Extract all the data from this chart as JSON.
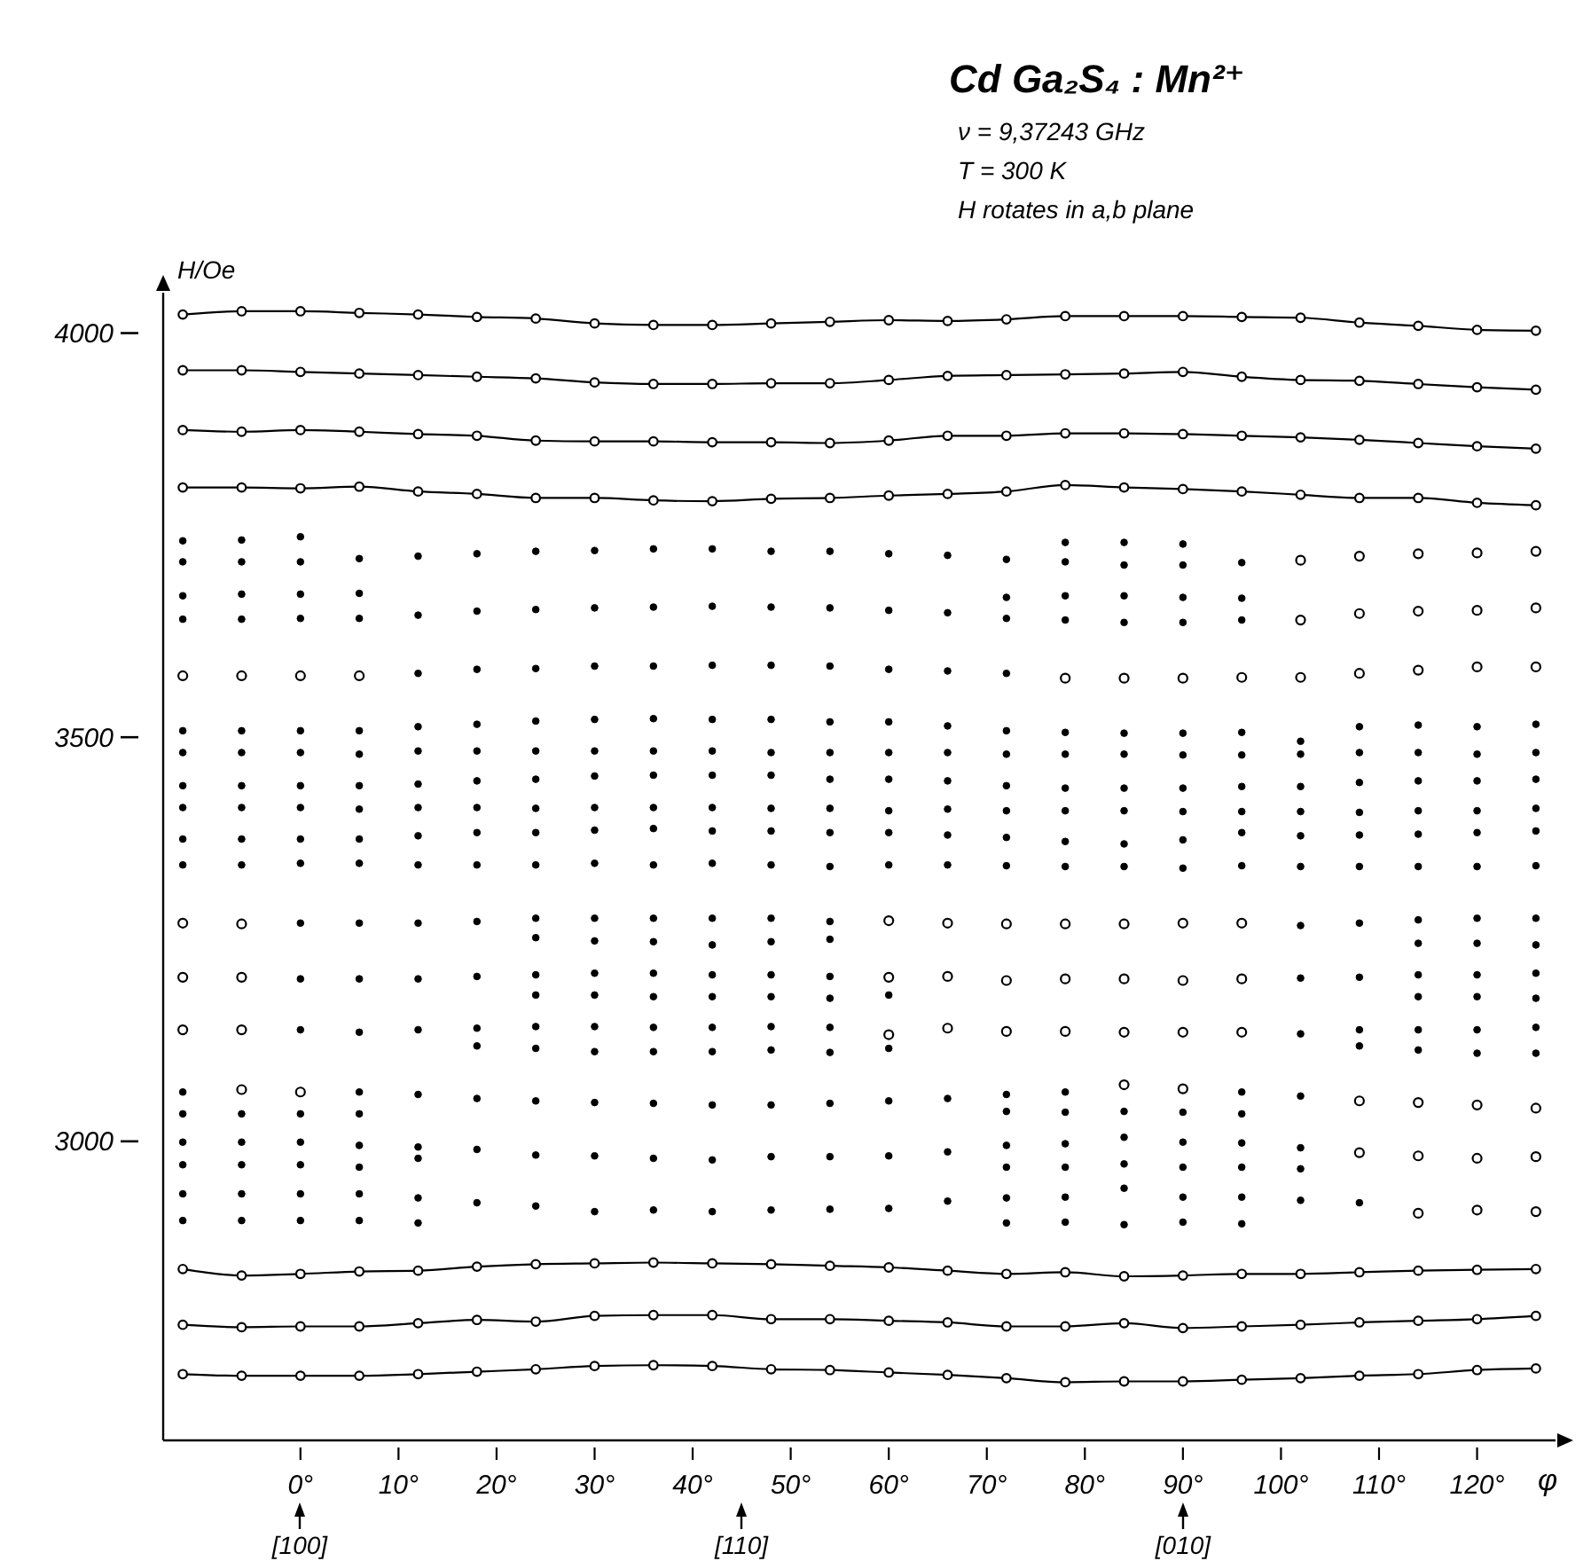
{
  "chart_data": {
    "type": "scatter",
    "title": "Cd Ga₂S₄ : Mn²⁺",
    "subtitle": "ν = 9,37243 GHz",
    "xlabel": "φ",
    "ylabel": "H/Oe",
    "annotations": [
      "T = 300 K",
      "H rotates in a,b plane",
      "[100]",
      "[110]",
      "[010]"
    ],
    "xlim": [
      -14,
      128
    ],
    "ylim": [
      2630,
      4050
    ],
    "xticks": [
      {
        "value": 0,
        "label": "0°"
      },
      {
        "value": 10,
        "label": "10°"
      },
      {
        "value": 20,
        "label": "20°"
      },
      {
        "value": 30,
        "label": "30°"
      },
      {
        "value": 40,
        "label": "40°"
      },
      {
        "value": 50,
        "label": "50°"
      },
      {
        "value": 60,
        "label": "60°"
      },
      {
        "value": 70,
        "label": "70°"
      },
      {
        "value": 80,
        "label": "80°"
      },
      {
        "value": 90,
        "label": "90°"
      },
      {
        "value": 100,
        "label": "100°"
      },
      {
        "value": 110,
        "label": "110°"
      },
      {
        "value": 120,
        "label": "120°"
      }
    ],
    "yticks": [
      3000,
      3500,
      4000
    ],
    "marker": "circle",
    "x": [
      -12,
      -6,
      0,
      6,
      12,
      18,
      24,
      30,
      36,
      42,
      48,
      54,
      60,
      66,
      72,
      78,
      84,
      90,
      96,
      102,
      108,
      114,
      120,
      126
    ],
    "series": [
      {
        "type": "line",
        "color": "#000000",
        "values": [
          4023,
          4027,
          4027,
          4025,
          4023,
          4020,
          4018,
          4012,
          4010,
          4010,
          4012,
          4014,
          4016,
          4015,
          4017,
          4021,
          4021,
          4021,
          4020,
          4019,
          4013,
          4009,
          4004,
          4003
        ]
      },
      {
        "type": "line",
        "color": "#000000",
        "values": [
          3954,
          3954,
          3952,
          3950,
          3948,
          3946,
          3944,
          3939,
          3937,
          3937,
          3938,
          3938,
          3942,
          3947,
          3948,
          3949,
          3950,
          3952,
          3946,
          3942,
          3941,
          3937,
          3933,
          3930
        ]
      },
      {
        "type": "line",
        "color": "#000000",
        "values": [
          3880,
          3878,
          3880,
          3878,
          3875,
          3873,
          3867,
          3866,
          3866,
          3865,
          3865,
          3864,
          3867,
          3873,
          3873,
          3876,
          3876,
          3875,
          3873,
          3871,
          3868,
          3864,
          3860,
          3857
        ]
      },
      {
        "type": "line",
        "color": "#000000",
        "values": [
          3809,
          3809,
          3808,
          3810,
          3804,
          3801,
          3796,
          3796,
          3793,
          3792,
          3795,
          3796,
          3799,
          3801,
          3804,
          3812,
          3809,
          3807,
          3804,
          3800,
          3796,
          3796,
          3790,
          3787
        ]
      },
      {
        "type": "line",
        "color": "#000000",
        "values": [
          2842,
          2834,
          2836,
          2839,
          2840,
          2845,
          2848,
          2849,
          2850,
          2849,
          2848,
          2846,
          2844,
          2840,
          2836,
          2838,
          2833,
          2834,
          2836,
          2836,
          2838,
          2840,
          2841,
          2842
        ]
      },
      {
        "type": "line",
        "color": "#000000",
        "values": [
          2773,
          2770,
          2771,
          2771,
          2775,
          2779,
          2777,
          2784,
          2785,
          2785,
          2780,
          2780,
          2778,
          2776,
          2771,
          2771,
          2775,
          2769,
          2771,
          2773,
          2776,
          2778,
          2780,
          2784
        ]
      },
      {
        "type": "line",
        "color": "#000000",
        "values": [
          2712,
          2710,
          2710,
          2710,
          2712,
          2715,
          2718,
          2722,
          2723,
          2722,
          2718,
          2717,
          2714,
          2711,
          2707,
          2702,
          2703,
          2703,
          2705,
          2707,
          2710,
          2712,
          2717,
          2719
        ]
      },
      {
        "type": "scatter",
        "color": "#000000",
        "x": [
          -12,
          -12,
          -12,
          -12,
          -12,
          -12,
          -12,
          -12,
          -12,
          -12,
          -12,
          -12,
          -12,
          -12,
          -12,
          -12,
          -6,
          -6,
          -6,
          -6,
          -6,
          -6,
          -6,
          -6,
          -6,
          -6,
          -6,
          -6,
          -6,
          -6,
          -6,
          0,
          0,
          0,
          0,
          0,
          0,
          0,
          0,
          0,
          0,
          0,
          0,
          0,
          0,
          0,
          0,
          0,
          0,
          6,
          6,
          6,
          6,
          6,
          6,
          6,
          6,
          6,
          6,
          6,
          6,
          6,
          6,
          6,
          6,
          6,
          6,
          12,
          12,
          12,
          12,
          12,
          12,
          12,
          12,
          12,
          12,
          12,
          12,
          12,
          12,
          12,
          12,
          12,
          18,
          18,
          18,
          18,
          18,
          18,
          18,
          18,
          18,
          18,
          18,
          18,
          18,
          18,
          18,
          18,
          24,
          24,
          24,
          24,
          24,
          24,
          24,
          24,
          24,
          24,
          24,
          24,
          24,
          24,
          24,
          24,
          24,
          24,
          30,
          30,
          30,
          30,
          30,
          30,
          30,
          30,
          30,
          30,
          30,
          30,
          30,
          30,
          30,
          30,
          30,
          30,
          36,
          36,
          36,
          36,
          36,
          36,
          36,
          36,
          36,
          36,
          36,
          36,
          36,
          36,
          36,
          36,
          36,
          36,
          42,
          42,
          42,
          42,
          42,
          42,
          42,
          42,
          42,
          42,
          42,
          42,
          42,
          42,
          42,
          42,
          42,
          42,
          48,
          48,
          48,
          48,
          48,
          48,
          48,
          48,
          48,
          48,
          48,
          48,
          48,
          48,
          48,
          48,
          48,
          48,
          54,
          54,
          54,
          54,
          54,
          54,
          54,
          54,
          54,
          54,
          54,
          54,
          54,
          54,
          54,
          54,
          54,
          54,
          60,
          60,
          60,
          60,
          60,
          60,
          60,
          60,
          60,
          60,
          60,
          60,
          60,
          60,
          66,
          66,
          66,
          66,
          66,
          66,
          66,
          66,
          66,
          66,
          66,
          66,
          72,
          72,
          72,
          72,
          72,
          72,
          72,
          72,
          72,
          72,
          72,
          72,
          72,
          72,
          72,
          72,
          78,
          78,
          78,
          78,
          78,
          78,
          78,
          78,
          78,
          78,
          78,
          78,
          78,
          78,
          78,
          78,
          84,
          84,
          84,
          84,
          84,
          84,
          84,
          84,
          84,
          84,
          84,
          84,
          84,
          84,
          84,
          90,
          90,
          90,
          90,
          90,
          90,
          90,
          90,
          90,
          90,
          90,
          90,
          90,
          90,
          90,
          96,
          96,
          96,
          96,
          96,
          96,
          96,
          96,
          96,
          96,
          96,
          96,
          96,
          96,
          96,
          102,
          102,
          102,
          102,
          102,
          102,
          102,
          102,
          102,
          102,
          102,
          102,
          102,
          108,
          108,
          108,
          108,
          108,
          108,
          108,
          108,
          108,
          108,
          108,
          114,
          114,
          114,
          114,
          114,
          114,
          114,
          114,
          114,
          114,
          114,
          114,
          120,
          120,
          120,
          120,
          120,
          120,
          120,
          120,
          120,
          120,
          120,
          120,
          126,
          126,
          126,
          126,
          126,
          126,
          126,
          126,
          126,
          126,
          126,
          126
        ],
        "values": [
          3743,
          3717,
          3675,
          3646,
          3508,
          3481,
          3440,
          3413,
          3374,
          3342,
          3061,
          3034,
          2999,
          2971,
          2935,
          2902,
          3744,
          3717,
          3677,
          3646,
          3508,
          3481,
          3440,
          3413,
          3374,
          3342,
          3034,
          2999,
          2971,
          2935,
          2902,
          3748,
          3717,
          3677,
          3647,
          3508,
          3481,
          3440,
          3413,
          3374,
          3344,
          3270,
          3201,
          3138,
          3034,
          2999,
          2971,
          2935,
          2902,
          3721,
          3678,
          3647,
          3508,
          3479,
          3440,
          3411,
          3374,
          3344,
          3270,
          3201,
          3135,
          3061,
          3034,
          2995,
          2968,
          2935,
          2902,
          3724,
          3651,
          3579,
          3513,
          3483,
          3442,
          3413,
          3378,
          3342,
          3270,
          3201,
          3138,
          3058,
          2993,
          2979,
          2930,
          2899,
          3727,
          3656,
          3584,
          3516,
          3483,
          3446,
          3413,
          3382,
          3342,
          3272,
          3204,
          3140,
          3118,
          3053,
          2990,
          2924,
          3730,
          3658,
          3585,
          3520,
          3483,
          3448,
          3412,
          3382,
          3342,
          3276,
          3252,
          3206,
          3181,
          3142,
          3115,
          3050,
          2983,
          2920,
          3731,
          3660,
          3588,
          3522,
          3483,
          3452,
          3413,
          3385,
          3344,
          3276,
          3248,
          3208,
          3181,
          3142,
          3111,
          3048,
          2982,
          2913,
          3733,
          3661,
          3588,
          3523,
          3483,
          3453,
          3413,
          3387,
          3342,
          3276,
          3247,
          3208,
          3179,
          3141,
          3111,
          3047,
          2979,
          2915,
          3733,
          3662,
          3589,
          3522,
          3483,
          3453,
          3413,
          3384,
          3344,
          3276,
          3243,
          3206,
          3179,
          3141,
          3111,
          3045,
          2977,
          2913,
          3730,
          3661,
          3589,
          3522,
          3481,
          3453,
          3412,
          3384,
          3342,
          3276,
          3247,
          3206,
          3179,
          3142,
          3113,
          3045,
          2981,
          2915,
          3730,
          3660,
          3588,
          3519,
          3481,
          3448,
          3412,
          3382,
          3340,
          3272,
          3250,
          3204,
          3177,
          3141,
          3110,
          3047,
          2981,
          2916,
          3727,
          3657,
          3584,
          3519,
          3481,
          3448,
          3409,
          3382,
          3342,
          3181,
          3115,
          3050,
          2982,
          2917,
          3725,
          3654,
          3582,
          3514,
          3481,
          3446,
          3411,
          3379,
          3342,
          3053,
          2987,
          2926,
          3720,
          3673,
          3647,
          3579,
          3508,
          3479,
          3440,
          3409,
          3376,
          3341,
          3058,
          3037,
          2995,
          2968,
          2930,
          2899,
          3741,
          3717,
          3675,
          3645,
          3506,
          3479,
          3437,
          3409,
          3371,
          3340,
          3061,
          3036,
          2997,
          2968,
          2931,
          2900,
          3741,
          3713,
          3675,
          3642,
          3505,
          3479,
          3437,
          3409,
          3368,
          3340,
          3037,
          3005,
          2972,
          2942,
          2897,
          3739,
          3713,
          3673,
          3642,
          3505,
          3478,
          3437,
          3408,
          3373,
          3338,
          3036,
          2999,
          2968,
          2931,
          2900,
          3716,
          3672,
          3645,
          3506,
          3478,
          3439,
          3408,
          3382,
          3341,
          3061,
          3034,
          2998,
          2968,
          2931,
          2898,
          3495,
          3479,
          3439,
          3408,
          3378,
          3340,
          3267,
          3202,
          3133,
          3056,
          2992,
          2966,
          2927,
          3513,
          3481,
          3444,
          3407,
          3379,
          3340,
          3270,
          3203,
          3138,
          3118,
          2924,
          3515,
          3481,
          3446,
          3409,
          3380,
          3340,
          3274,
          3245,
          3206,
          3179,
          3138,
          3113,
          3513,
          3479,
          3446,
          3409,
          3382,
          3340,
          3276,
          3245,
          3206,
          3179,
          3138,
          3109,
          3516,
          3481,
          3448,
          3412,
          3384,
          3341,
          3276,
          3243,
          3208,
          3177,
          3141,
          3109
        ]
      },
      {
        "type": "scatter",
        "color": "#000000",
        "x": [
          -12,
          -12,
          -12,
          -12,
          -6,
          -6,
          -6,
          -6,
          -6,
          0,
          0,
          6,
          60,
          60,
          60,
          66,
          66,
          66,
          72,
          72,
          72,
          78,
          78,
          78,
          78,
          84,
          84,
          84,
          84,
          84,
          90,
          90,
          90,
          90,
          90,
          96,
          96,
          96,
          96,
          102,
          102,
          102,
          108,
          108,
          108,
          108,
          108,
          114,
          114,
          114,
          114,
          114,
          114,
          120,
          120,
          120,
          120,
          120,
          120,
          126,
          126,
          126,
          126,
          126,
          126
        ],
        "values": [
          3576,
          3270,
          3203,
          3138,
          3576,
          3269,
          3203,
          3138,
          3064,
          3576,
          3061,
          3576,
          3273,
          3203,
          3132,
          3270,
          3204,
          3140,
          3269,
          3199,
          3136,
          3573,
          3269,
          3201,
          3136,
          3573,
          3269,
          3201,
          3135,
          3070,
          3573,
          3270,
          3199,
          3135,
          3065,
          3574,
          3270,
          3201,
          3135,
          3719,
          3645,
          3574,
          3724,
          3653,
          3579,
          3050,
          2986,
          3727,
          3656,
          3583,
          3048,
          2982,
          2911,
          3728,
          3657,
          3587,
          3045,
          2979,
          2915,
          3730,
          3660,
          3587,
          3041,
          2981,
          2913
        ]
      }
    ]
  }
}
